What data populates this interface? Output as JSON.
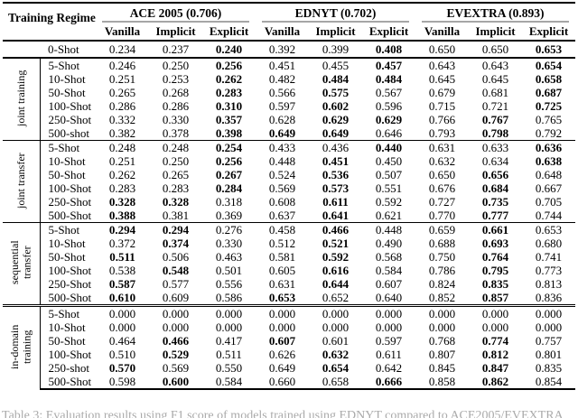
{
  "table": {
    "corner_header": "Training Regime",
    "datasets": [
      {
        "label": "ACE 2005 (0.706)",
        "columns": [
          "Vanilla",
          "Implicit",
          "Explicit"
        ]
      },
      {
        "label": "EDNYT (0.702)",
        "columns": [
          "Vanilla",
          "Implicit",
          "Explicit"
        ]
      },
      {
        "label": "EVEXTRA (0.893)",
        "columns": [
          "Vanilla",
          "Implicit",
          "Explicit"
        ]
      }
    ],
    "zero_shot_row": {
      "label": "0-Shot",
      "values": [
        "0.234",
        "0.237",
        "0.240",
        "0.392",
        "0.399",
        "0.408",
        "0.650",
        "0.650",
        "0.653"
      ],
      "bold": [
        0,
        0,
        1,
        0,
        0,
        1,
        0,
        0,
        1
      ]
    },
    "blocks": [
      {
        "group": "joint training",
        "rows": [
          {
            "label": "5-Shot",
            "values": [
              "0.246",
              "0.250",
              "0.256",
              "0.451",
              "0.455",
              "0.457",
              "0.643",
              "0.643",
              "0.654"
            ],
            "bold": [
              0,
              0,
              1,
              0,
              0,
              1,
              0,
              0,
              1
            ]
          },
          {
            "label": "10-Shot",
            "values": [
              "0.251",
              "0.253",
              "0.262",
              "0.482",
              "0.484",
              "0.484",
              "0.645",
              "0.645",
              "0.658"
            ],
            "bold": [
              0,
              0,
              1,
              0,
              1,
              1,
              0,
              0,
              1
            ]
          },
          {
            "label": "50-Shot",
            "values": [
              "0.265",
              "0.268",
              "0.283",
              "0.566",
              "0.575",
              "0.567",
              "0.679",
              "0.681",
              "0.687"
            ],
            "bold": [
              0,
              0,
              1,
              0,
              1,
              0,
              0,
              0,
              1
            ]
          },
          {
            "label": "100-Shot",
            "values": [
              "0.286",
              "0.286",
              "0.310",
              "0.597",
              "0.602",
              "0.596",
              "0.715",
              "0.721",
              "0.725"
            ],
            "bold": [
              0,
              0,
              1,
              0,
              1,
              0,
              0,
              0,
              1
            ]
          },
          {
            "label": "250-Shot",
            "values": [
              "0.332",
              "0.330",
              "0.357",
              "0.628",
              "0.629",
              "0.629",
              "0.766",
              "0.767",
              "0.765"
            ],
            "bold": [
              0,
              0,
              1,
              0,
              1,
              1,
              0,
              1,
              0
            ]
          },
          {
            "label": "500-shot",
            "values": [
              "0.382",
              "0.378",
              "0.398",
              "0.649",
              "0.649",
              "0.646",
              "0.793",
              "0.798",
              "0.792"
            ],
            "bold": [
              0,
              0,
              1,
              1,
              1,
              0,
              0,
              1,
              0
            ]
          }
        ]
      },
      {
        "group": "joint transfer",
        "rows": [
          {
            "label": "5-Shot",
            "values": [
              "0.248",
              "0.248",
              "0.254",
              "0.433",
              "0.436",
              "0.440",
              "0.631",
              "0.633",
              "0.636"
            ],
            "bold": [
              0,
              0,
              1,
              0,
              0,
              1,
              0,
              0,
              1
            ]
          },
          {
            "label": "10-Shot",
            "values": [
              "0.251",
              "0.250",
              "0.256",
              "0.448",
              "0.451",
              "0.450",
              "0.632",
              "0.634",
              "0.638"
            ],
            "bold": [
              0,
              0,
              1,
              0,
              1,
              0,
              0,
              0,
              1
            ]
          },
          {
            "label": "50-Shot",
            "values": [
              "0.262",
              "0.265",
              "0.267",
              "0.524",
              "0.536",
              "0.507",
              "0.650",
              "0.656",
              "0.648"
            ],
            "bold": [
              0,
              0,
              1,
              0,
              1,
              0,
              0,
              1,
              0
            ]
          },
          {
            "label": "100-Shot",
            "values": [
              "0.283",
              "0.283",
              "0.284",
              "0.569",
              "0.573",
              "0.551",
              "0.676",
              "0.684",
              "0.667"
            ],
            "bold": [
              0,
              0,
              1,
              0,
              1,
              0,
              0,
              1,
              0
            ]
          },
          {
            "label": "250-Shot",
            "values": [
              "0.328",
              "0.328",
              "0.318",
              "0.608",
              "0.611",
              "0.592",
              "0.727",
              "0.735",
              "0.705"
            ],
            "bold": [
              1,
              1,
              0,
              0,
              1,
              0,
              0,
              1,
              0
            ]
          },
          {
            "label": "500-Shot",
            "values": [
              "0.388",
              "0.381",
              "0.369",
              "0.637",
              "0.641",
              "0.621",
              "0.770",
              "0.777",
              "0.744"
            ],
            "bold": [
              1,
              0,
              0,
              0,
              1,
              0,
              0,
              1,
              0
            ]
          }
        ]
      },
      {
        "group": "sequential transfer",
        "rows": [
          {
            "label": "5-Shot",
            "values": [
              "0.294",
              "0.294",
              "0.276",
              "0.458",
              "0.466",
              "0.448",
              "0.659",
              "0.661",
              "0.653"
            ],
            "bold": [
              1,
              1,
              0,
              0,
              1,
              0,
              0,
              1,
              0
            ]
          },
          {
            "label": "10-Shot",
            "values": [
              "0.372",
              "0.374",
              "0.330",
              "0.512",
              "0.521",
              "0.490",
              "0.688",
              "0.693",
              "0.680"
            ],
            "bold": [
              0,
              1,
              0,
              0,
              1,
              0,
              0,
              1,
              0
            ]
          },
          {
            "label": "50-Shot",
            "values": [
              "0.511",
              "0.506",
              "0.463",
              "0.581",
              "0.592",
              "0.568",
              "0.750",
              "0.764",
              "0.741"
            ],
            "bold": [
              1,
              0,
              0,
              0,
              1,
              0,
              0,
              1,
              0
            ]
          },
          {
            "label": "100-Shot",
            "values": [
              "0.538",
              "0.548",
              "0.501",
              "0.605",
              "0.616",
              "0.584",
              "0.786",
              "0.795",
              "0.773"
            ],
            "bold": [
              0,
              1,
              0,
              0,
              1,
              0,
              0,
              1,
              0
            ]
          },
          {
            "label": "250-Shot",
            "values": [
              "0.587",
              "0.577",
              "0.556",
              "0.631",
              "0.644",
              "0.607",
              "0.824",
              "0.835",
              "0.813"
            ],
            "bold": [
              1,
              0,
              0,
              0,
              1,
              0,
              0,
              1,
              0
            ]
          },
          {
            "label": "500-Shot",
            "values": [
              "0.610",
              "0.609",
              "0.586",
              "0.653",
              "0.652",
              "0.640",
              "0.852",
              "0.857",
              "0.836"
            ],
            "bold": [
              1,
              0,
              0,
              1,
              0,
              0,
              0,
              1,
              0
            ]
          }
        ]
      },
      {
        "group": "in-domain training",
        "rows": [
          {
            "label": "5-Shot",
            "values": [
              "0.000",
              "0.000",
              "0.000",
              "0.000",
              "0.000",
              "0.000",
              "0.000",
              "0.000",
              "0.000"
            ],
            "bold": [
              0,
              0,
              0,
              0,
              0,
              0,
              0,
              0,
              0
            ]
          },
          {
            "label": "10-Shot",
            "values": [
              "0.000",
              "0.000",
              "0.000",
              "0.000",
              "0.000",
              "0.000",
              "0.000",
              "0.000",
              "0.000"
            ],
            "bold": [
              0,
              0,
              0,
              0,
              0,
              0,
              0,
              0,
              0
            ]
          },
          {
            "label": "50-Shot",
            "values": [
              "0.464",
              "0.466",
              "0.417",
              "0.607",
              "0.601",
              "0.597",
              "0.768",
              "0.774",
              "0.757"
            ],
            "bold": [
              0,
              1,
              0,
              1,
              0,
              0,
              0,
              1,
              0
            ]
          },
          {
            "label": "100-Shot",
            "values": [
              "0.510",
              "0.529",
              "0.511",
              "0.626",
              "0.632",
              "0.611",
              "0.807",
              "0.812",
              "0.801"
            ],
            "bold": [
              0,
              1,
              0,
              0,
              1,
              0,
              0,
              1,
              0
            ]
          },
          {
            "label": "250-shot",
            "values": [
              "0.570",
              "0.569",
              "0.550",
              "0.649",
              "0.654",
              "0.642",
              "0.845",
              "0.847",
              "0.835"
            ],
            "bold": [
              1,
              0,
              0,
              0,
              1,
              0,
              0,
              1,
              0
            ]
          },
          {
            "label": "500-Shot",
            "values": [
              "0.598",
              "0.600",
              "0.584",
              "0.660",
              "0.658",
              "0.666",
              "0.858",
              "0.862",
              "0.854"
            ],
            "bold": [
              0,
              1,
              0,
              0,
              0,
              1,
              0,
              1,
              0
            ]
          }
        ]
      }
    ]
  },
  "caption": {
    "partial_text": "Table 3: Evaluation results using F1 score of models trained using EDNYT compared to ACE2005/EVEXTRA"
  }
}
